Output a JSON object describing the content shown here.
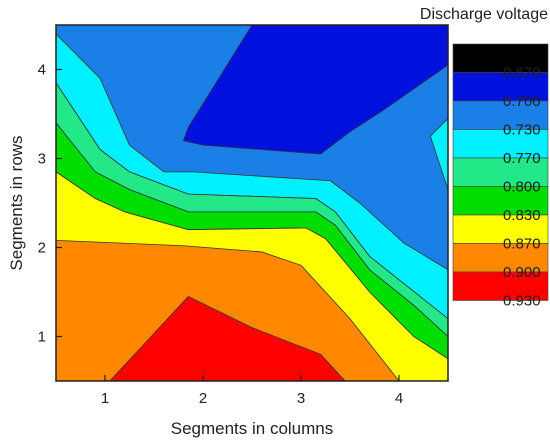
{
  "chart_data": {
    "type": "heatmap",
    "subtype": "filled-contour",
    "title": "Discharge voltage",
    "xlabel": "Segments in columns",
    "ylabel": "Segments in rows",
    "xlim": [
      0.5,
      4.5
    ],
    "ylim": [
      0.5,
      4.5
    ],
    "xticks": [
      "1",
      "2",
      "3",
      "4"
    ],
    "yticks": [
      "1",
      "2",
      "3",
      "4"
    ],
    "grid": false,
    "legend": {
      "position": "right",
      "levels": [
        {
          "label": "0.670",
          "color": "#000000"
        },
        {
          "label": "0.700",
          "color": "#0011dd"
        },
        {
          "label": "0.730",
          "color": "#1b7fe8"
        },
        {
          "label": "0.770",
          "color": "#00f0ff"
        },
        {
          "label": "0.800",
          "color": "#22e888"
        },
        {
          "label": "0.830",
          "color": "#00dd00"
        },
        {
          "label": "0.870",
          "color": "#ffff00"
        },
        {
          "label": "0.900",
          "color": "#ff8800"
        },
        {
          "label": "0.930",
          "color": "#ff0000"
        }
      ]
    },
    "regions": [
      {
        "level": "0.700",
        "color": "#0011dd",
        "points": [
          [
            1.8,
            3.2
          ],
          [
            1.85,
            3.35
          ],
          [
            2.5,
            4.5
          ],
          [
            4.5,
            4.5
          ],
          [
            4.5,
            4.05
          ],
          [
            3.85,
            3.55
          ],
          [
            3.5,
            3.3
          ],
          [
            3.2,
            3.05
          ],
          [
            2.0,
            3.15
          ]
        ]
      },
      {
        "level": "0.770",
        "color": "#00f0ff",
        "points": [
          [
            0.5,
            4.4
          ],
          [
            0.95,
            3.9
          ],
          [
            1.25,
            3.15
          ],
          [
            1.6,
            2.85
          ],
          [
            1.9,
            2.85
          ],
          [
            3.3,
            2.75
          ],
          [
            3.6,
            2.5
          ],
          [
            4.05,
            2.05
          ],
          [
            4.5,
            1.75
          ],
          [
            4.5,
            1.2
          ],
          [
            4.1,
            1.55
          ],
          [
            3.7,
            1.9
          ],
          [
            3.35,
            2.4
          ],
          [
            3.15,
            2.55
          ],
          [
            1.85,
            2.6
          ],
          [
            1.25,
            2.85
          ],
          [
            0.95,
            3.1
          ],
          [
            0.5,
            3.85
          ]
        ]
      },
      {
        "level": "0.770",
        "color": "#00f0ff",
        "points": [
          [
            4.5,
            3.45
          ],
          [
            4.32,
            3.25
          ],
          [
            4.5,
            2.65
          ]
        ]
      },
      {
        "level": "0.800",
        "color": "#22e888",
        "points": [
          [
            0.5,
            3.85
          ],
          [
            0.95,
            3.1
          ],
          [
            1.25,
            2.85
          ],
          [
            1.85,
            2.6
          ],
          [
            3.15,
            2.55
          ],
          [
            3.35,
            2.4
          ],
          [
            3.7,
            1.9
          ],
          [
            4.1,
            1.55
          ],
          [
            4.5,
            1.2
          ],
          [
            4.5,
            1.0
          ],
          [
            4.15,
            1.35
          ],
          [
            3.7,
            1.75
          ],
          [
            3.35,
            2.25
          ],
          [
            3.15,
            2.4
          ],
          [
            1.85,
            2.4
          ],
          [
            1.25,
            2.65
          ],
          [
            0.9,
            2.85
          ],
          [
            0.5,
            3.4
          ]
        ]
      },
      {
        "level": "0.830",
        "color": "#00dd00",
        "points": [
          [
            0.5,
            3.4
          ],
          [
            0.9,
            2.85
          ],
          [
            1.25,
            2.65
          ],
          [
            1.85,
            2.4
          ],
          [
            3.15,
            2.4
          ],
          [
            3.35,
            2.25
          ],
          [
            3.7,
            1.75
          ],
          [
            4.15,
            1.35
          ],
          [
            4.5,
            1.0
          ],
          [
            4.5,
            0.75
          ],
          [
            4.15,
            1.0
          ],
          [
            3.7,
            1.5
          ],
          [
            3.25,
            2.1
          ],
          [
            3.05,
            2.22
          ],
          [
            1.85,
            2.2
          ],
          [
            1.2,
            2.4
          ],
          [
            0.9,
            2.55
          ],
          [
            0.5,
            2.85
          ]
        ]
      },
      {
        "level": "0.870",
        "color": "#ffff00",
        "points": [
          [
            0.5,
            2.85
          ],
          [
            0.9,
            2.55
          ],
          [
            1.2,
            2.4
          ],
          [
            1.85,
            2.2
          ],
          [
            3.05,
            2.22
          ],
          [
            3.25,
            2.1
          ],
          [
            3.7,
            1.5
          ],
          [
            4.15,
            1.0
          ],
          [
            4.5,
            0.75
          ],
          [
            4.5,
            0.5
          ],
          [
            4.0,
            0.5
          ],
          [
            3.5,
            1.2
          ],
          [
            3.0,
            1.8
          ],
          [
            2.6,
            1.95
          ],
          [
            1.8,
            2.02
          ],
          [
            0.5,
            2.08
          ]
        ]
      },
      {
        "level": "0.930",
        "color": "#ff0000",
        "points": [
          [
            1.05,
            0.5
          ],
          [
            1.85,
            1.45
          ],
          [
            2.5,
            1.1
          ],
          [
            3.2,
            0.8
          ],
          [
            3.45,
            0.5
          ]
        ]
      }
    ]
  }
}
